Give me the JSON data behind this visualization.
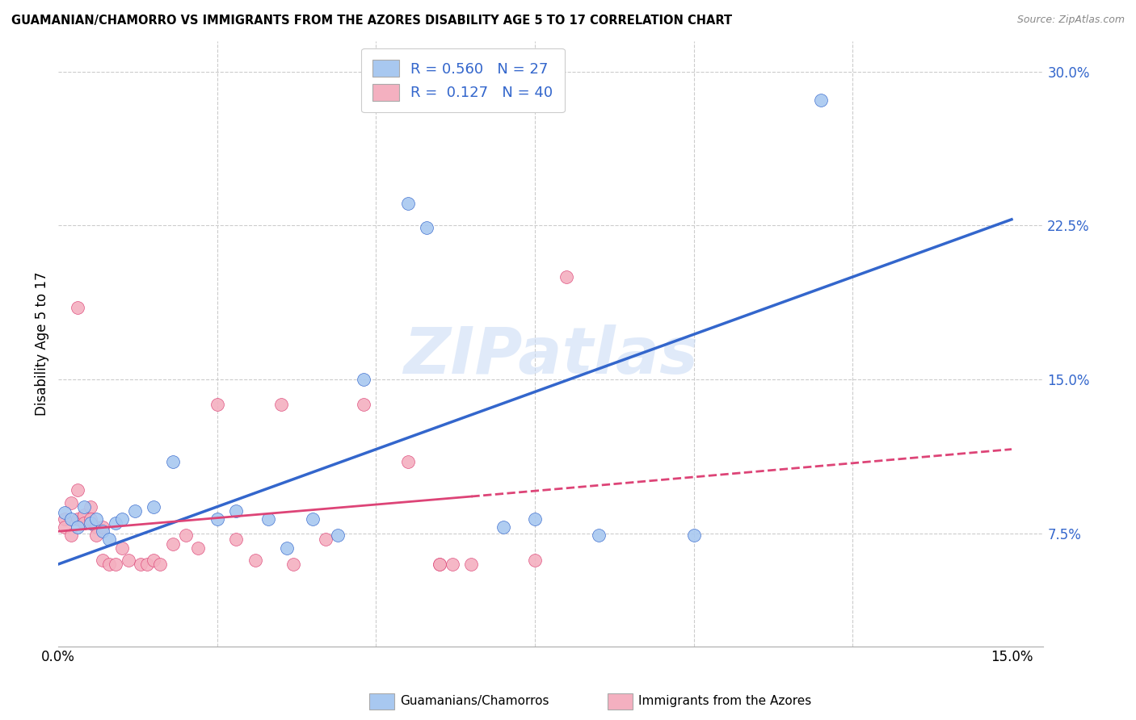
{
  "title": "GUAMANIAN/CHAMORRO VS IMMIGRANTS FROM THE AZORES DISABILITY AGE 5 TO 17 CORRELATION CHART",
  "source": "Source: ZipAtlas.com",
  "ylabel": "Disability Age 5 to 17",
  "xlim": [
    0.0,
    0.155
  ],
  "ylim": [
    0.02,
    0.315
  ],
  "yticks": [
    0.075,
    0.15,
    0.225,
    0.3
  ],
  "ytick_labels": [
    "7.5%",
    "15.0%",
    "22.5%",
    "30.0%"
  ],
  "blue_R": 0.56,
  "blue_N": 27,
  "pink_R": 0.127,
  "pink_N": 40,
  "blue_label": "Guamanians/Chamorros",
  "pink_label": "Immigrants from the Azores",
  "blue_color": "#a8c8f0",
  "pink_color": "#f4b0c0",
  "blue_line_color": "#3366cc",
  "pink_line_color": "#dd4477",
  "blue_scatter": [
    [
      0.001,
      0.085
    ],
    [
      0.002,
      0.082
    ],
    [
      0.003,
      0.078
    ],
    [
      0.004,
      0.088
    ],
    [
      0.005,
      0.08
    ],
    [
      0.006,
      0.082
    ],
    [
      0.007,
      0.076
    ],
    [
      0.008,
      0.072
    ],
    [
      0.009,
      0.08
    ],
    [
      0.01,
      0.082
    ],
    [
      0.012,
      0.086
    ],
    [
      0.015,
      0.088
    ],
    [
      0.018,
      0.11
    ],
    [
      0.025,
      0.082
    ],
    [
      0.028,
      0.086
    ],
    [
      0.033,
      0.082
    ],
    [
      0.036,
      0.068
    ],
    [
      0.04,
      0.082
    ],
    [
      0.044,
      0.074
    ],
    [
      0.048,
      0.15
    ],
    [
      0.055,
      0.236
    ],
    [
      0.058,
      0.224
    ],
    [
      0.07,
      0.078
    ],
    [
      0.075,
      0.082
    ],
    [
      0.085,
      0.074
    ],
    [
      0.1,
      0.074
    ],
    [
      0.12,
      0.286
    ]
  ],
  "pink_scatter": [
    [
      0.001,
      0.082
    ],
    [
      0.001,
      0.078
    ],
    [
      0.002,
      0.09
    ],
    [
      0.002,
      0.074
    ],
    [
      0.003,
      0.096
    ],
    [
      0.003,
      0.082
    ],
    [
      0.003,
      0.185
    ],
    [
      0.004,
      0.084
    ],
    [
      0.004,
      0.08
    ],
    [
      0.005,
      0.088
    ],
    [
      0.005,
      0.082
    ],
    [
      0.006,
      0.078
    ],
    [
      0.006,
      0.074
    ],
    [
      0.007,
      0.078
    ],
    [
      0.007,
      0.062
    ],
    [
      0.008,
      0.06
    ],
    [
      0.009,
      0.06
    ],
    [
      0.01,
      0.068
    ],
    [
      0.011,
      0.062
    ],
    [
      0.013,
      0.06
    ],
    [
      0.014,
      0.06
    ],
    [
      0.015,
      0.062
    ],
    [
      0.016,
      0.06
    ],
    [
      0.018,
      0.07
    ],
    [
      0.02,
      0.074
    ],
    [
      0.022,
      0.068
    ],
    [
      0.025,
      0.138
    ],
    [
      0.028,
      0.072
    ],
    [
      0.031,
      0.062
    ],
    [
      0.035,
      0.138
    ],
    [
      0.037,
      0.06
    ],
    [
      0.042,
      0.072
    ],
    [
      0.048,
      0.138
    ],
    [
      0.055,
      0.11
    ],
    [
      0.06,
      0.06
    ],
    [
      0.062,
      0.06
    ],
    [
      0.065,
      0.06
    ],
    [
      0.075,
      0.062
    ],
    [
      0.08,
      0.2
    ],
    [
      0.06,
      0.06
    ]
  ],
  "watermark_text": "ZIPatlas",
  "background_color": "#ffffff",
  "grid_color": "#cccccc",
  "grid_vlines": [
    0.025,
    0.05,
    0.075,
    0.1,
    0.125
  ]
}
